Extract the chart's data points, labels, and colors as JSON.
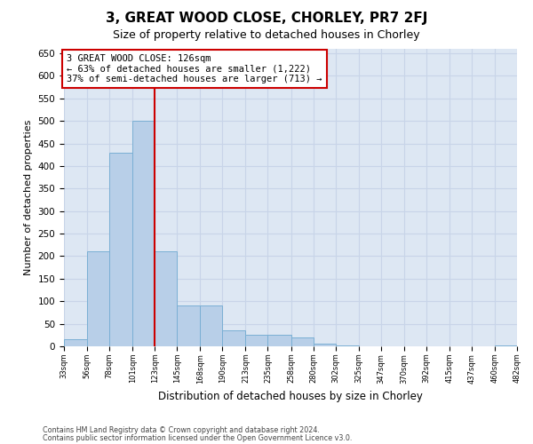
{
  "title": "3, GREAT WOOD CLOSE, CHORLEY, PR7 2FJ",
  "subtitle": "Size of property relative to detached houses in Chorley",
  "xlabel": "Distribution of detached houses by size in Chorley",
  "ylabel": "Number of detached properties",
  "bins": [
    33,
    56,
    78,
    101,
    123,
    145,
    168,
    190,
    213,
    235,
    258,
    280,
    302,
    325,
    347,
    370,
    392,
    415,
    437,
    460,
    482
  ],
  "counts": [
    15,
    210,
    430,
    500,
    210,
    90,
    90,
    35,
    25,
    25,
    20,
    5,
    2,
    0,
    0,
    0,
    0,
    0,
    0,
    2
  ],
  "bar_facecolor": "#b8cfe8",
  "bar_edgecolor": "#7aafd4",
  "grid_color": "#c8d4e8",
  "background_color": "#dde7f3",
  "vline_x": 123,
  "vline_color": "#cc0000",
  "annotation_text": "3 GREAT WOOD CLOSE: 126sqm\n← 63% of detached houses are smaller (1,222)\n37% of semi-detached houses are larger (713) →",
  "annotation_box_edgecolor": "#cc0000",
  "ylim": [
    0,
    660
  ],
  "yticks": [
    0,
    50,
    100,
    150,
    200,
    250,
    300,
    350,
    400,
    450,
    500,
    550,
    600,
    650
  ],
  "footer_line1": "Contains HM Land Registry data © Crown copyright and database right 2024.",
  "footer_line2": "Contains public sector information licensed under the Open Government Licence v3.0.",
  "title_fontsize": 11,
  "subtitle_fontsize": 9,
  "tick_labels": [
    "33sqm",
    "56sqm",
    "78sqm",
    "101sqm",
    "123sqm",
    "145sqm",
    "168sqm",
    "190sqm",
    "213sqm",
    "235sqm",
    "258sqm",
    "280sqm",
    "302sqm",
    "325sqm",
    "347sqm",
    "370sqm",
    "392sqm",
    "415sqm",
    "437sqm",
    "460sqm",
    "482sqm"
  ]
}
